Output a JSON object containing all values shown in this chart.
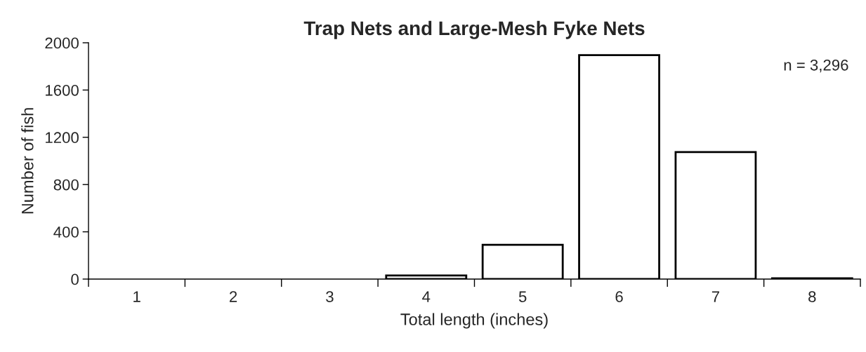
{
  "chart_data": {
    "type": "bar",
    "title": "Trap Nets and Large-Mesh Fyke Nets",
    "xlabel": "Total length (inches)",
    "ylabel": "Number of fish",
    "categories": [
      "1",
      "2",
      "3",
      "4",
      "5",
      "6",
      "7",
      "8"
    ],
    "values": [
      0,
      0,
      0,
      30,
      290,
      1895,
      1075,
      6
    ],
    "color": "#ffffff",
    "ylim": [
      0,
      2000
    ],
    "yticks": [
      0,
      400,
      800,
      1200,
      1600,
      2000
    ],
    "grid": false,
    "legend": false,
    "annotations": [
      "n = 3,296"
    ]
  }
}
